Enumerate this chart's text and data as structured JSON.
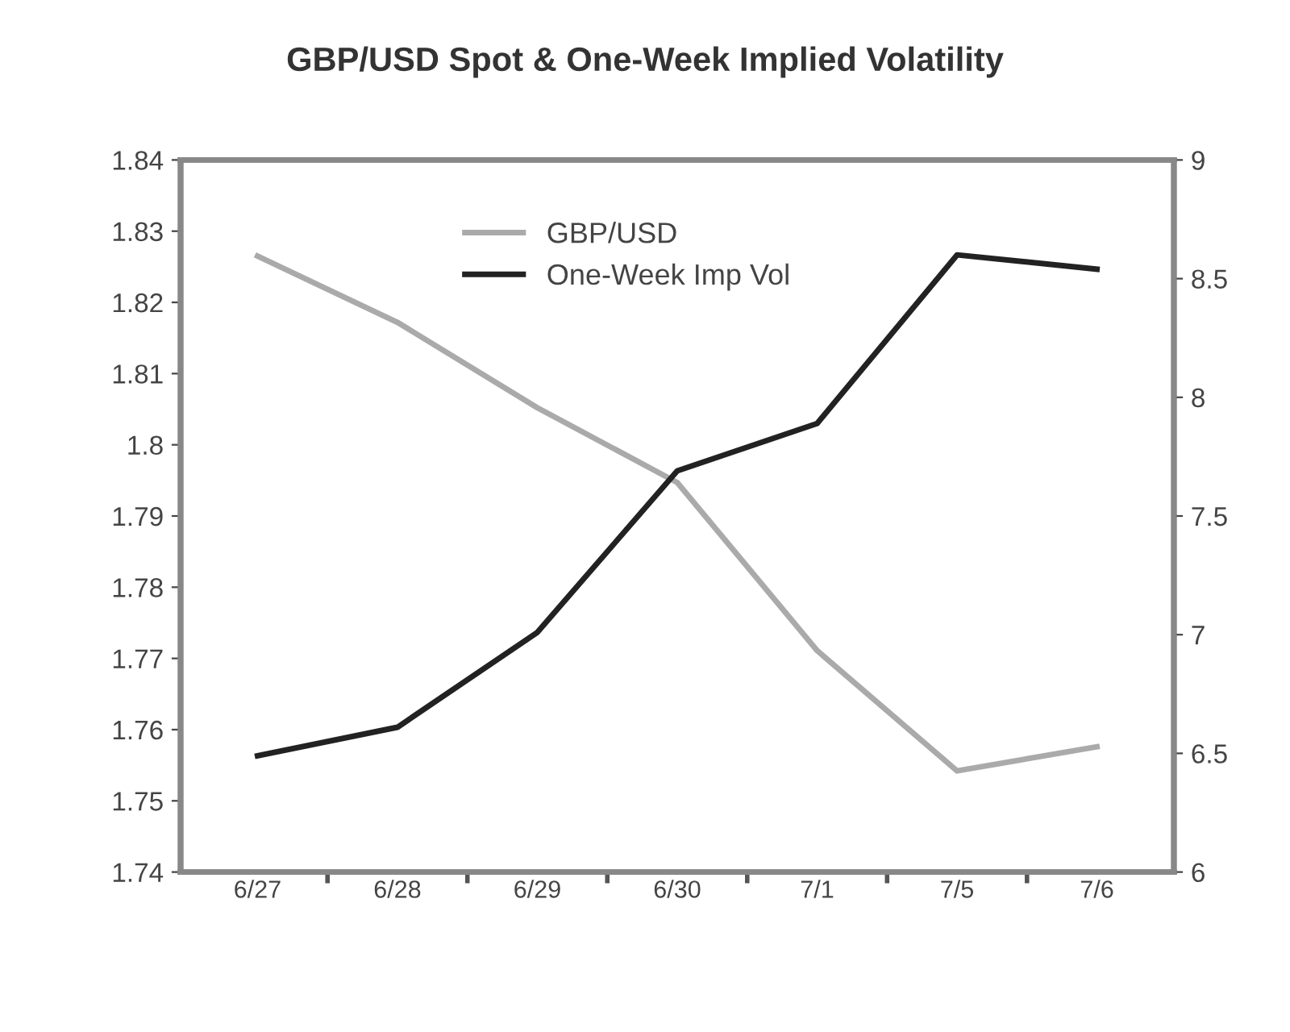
{
  "chart_data": {
    "type": "line",
    "title": "GBP/USD Spot & One-Week Implied Volatility",
    "categories": [
      "6/27",
      "6/28",
      "6/29",
      "6/30",
      "7/1",
      "7/5",
      "7/6"
    ],
    "series": [
      {
        "name": "GBP/USD",
        "color": "#aaaaaa",
        "values": [
          1.8265,
          1.8172,
          1.8052,
          1.7947,
          1.7711,
          1.7542,
          1.7576
        ]
      },
      {
        "name": "One-Week Imp Vol",
        "color": "#222222",
        "axis": "y2",
        "values": [
          6.49,
          6.61,
          7.01,
          7.69,
          7.89,
          8.6,
          8.54
        ]
      }
    ],
    "ylim": [
      1.74,
      1.84
    ],
    "yticks": [
      1.74,
      1.75,
      1.76,
      1.77,
      1.78,
      1.79,
      {
        "value": 1.8,
        "label": "1.8"
      },
      1.81,
      1.82,
      1.83,
      1.84
    ],
    "y2lim": [
      6,
      9
    ],
    "y2ticks": [
      6,
      6.5,
      7,
      7.5,
      8,
      8.5,
      9
    ],
    "legend": "top",
    "grid": false,
    "marker": "none",
    "line_style": "solid"
  }
}
